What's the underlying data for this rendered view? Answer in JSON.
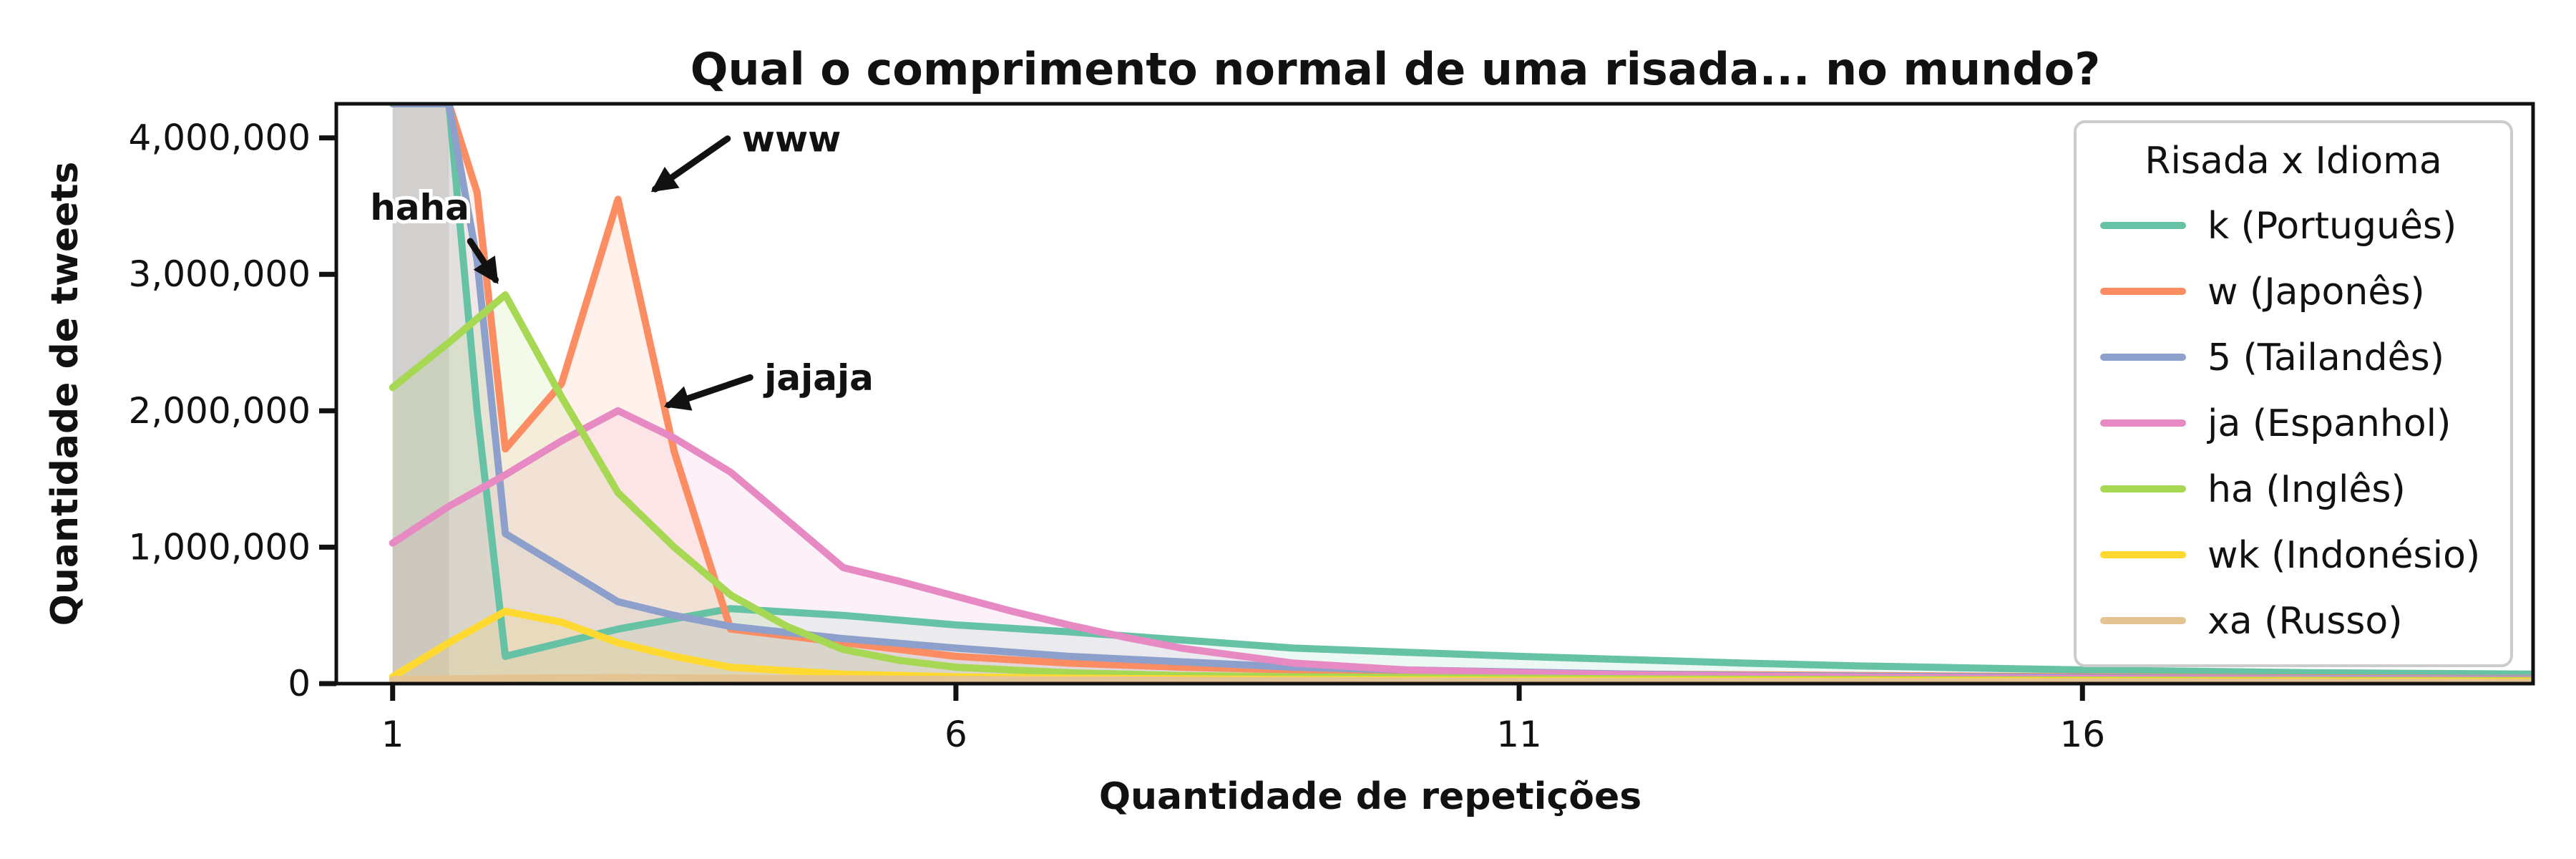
{
  "chart_data": {
    "type": "area",
    "title": "Qual o comprimento normal de uma risada... no mundo?",
    "xlabel": "Quantidade de repetições",
    "ylabel": "Quantidade de tweets",
    "xlim": [
      0.5,
      20
    ],
    "ylim": [
      0,
      4250000
    ],
    "xticks": [
      1,
      6,
      11,
      16
    ],
    "xtick_labels": [
      "1",
      "6",
      "11",
      "16"
    ],
    "yticks": [
      0,
      1000000,
      2000000,
      3000000,
      4000000
    ],
    "ytick_labels": [
      "0",
      "1,000,000",
      "2,000,000",
      "3,000,000",
      "4,000,000"
    ],
    "grid": false,
    "legend": {
      "title": "Risada x Idioma",
      "placement": "top-right"
    },
    "series": [
      {
        "name": "k (Português)",
        "color": "#66c2a5",
        "x": [
          1,
          1.5,
          1.75,
          2,
          2.5,
          3,
          4,
          5,
          6,
          7,
          8,
          9,
          10,
          11,
          12,
          13,
          14,
          15,
          16,
          17,
          18,
          19,
          20
        ],
        "y": [
          4250000,
          4250000,
          2000000,
          200000,
          300000,
          400000,
          550000,
          500000,
          430000,
          380000,
          320000,
          260000,
          230000,
          200000,
          175000,
          150000,
          130000,
          115000,
          100000,
          90000,
          80000,
          75000,
          70000
        ]
      },
      {
        "name": "w (Japonês)",
        "color": "#fc8d62",
        "x": [
          1,
          1.5,
          1.75,
          2,
          2.5,
          3,
          3.5,
          4,
          4.5,
          5,
          6,
          7,
          8,
          9,
          10,
          11,
          12,
          13,
          14,
          15,
          16,
          17,
          18,
          19,
          20
        ],
        "y": [
          4250000,
          4250000,
          3600000,
          1720000,
          2200000,
          3550000,
          1700000,
          400000,
          350000,
          300000,
          200000,
          150000,
          120000,
          100000,
          90000,
          80000,
          70000,
          65000,
          60000,
          55000,
          50000,
          45000,
          42000,
          40000,
          38000
        ]
      },
      {
        "name": "5 (Tailandês)",
        "color": "#8da0cb",
        "x": [
          1,
          1.5,
          1.75,
          2,
          2.5,
          3,
          3.5,
          4,
          5,
          6,
          7,
          8,
          9,
          10,
          11,
          12,
          13,
          14,
          15,
          16,
          17,
          18,
          19,
          20
        ],
        "y": [
          4250000,
          4250000,
          3100000,
          1100000,
          850000,
          600000,
          500000,
          420000,
          330000,
          260000,
          200000,
          160000,
          120000,
          100000,
          85000,
          70000,
          60000,
          55000,
          50000,
          45000,
          40000,
          38000,
          36000,
          35000
        ]
      },
      {
        "name": "ja (Espanhol)",
        "color": "#e78ac3",
        "x": [
          1,
          1.5,
          2,
          2.5,
          3,
          3.5,
          4,
          4.5,
          5,
          5.5,
          6,
          6.5,
          7,
          7.5,
          8,
          9,
          10,
          11,
          12,
          13,
          14,
          15,
          16,
          17,
          18,
          19,
          20
        ],
        "y": [
          1030000,
          1300000,
          1530000,
          1780000,
          2000000,
          1800000,
          1550000,
          1200000,
          850000,
          750000,
          640000,
          530000,
          430000,
          340000,
          260000,
          150000,
          100000,
          80000,
          65000,
          55000,
          48000,
          42000,
          38000,
          35000,
          32000,
          30000,
          28000
        ]
      },
      {
        "name": "ha (Inglês)",
        "color": "#a6d854",
        "x": [
          1,
          1.5,
          2,
          2.5,
          3,
          3.5,
          4,
          4.5,
          5,
          5.5,
          6,
          7,
          8,
          9,
          10,
          11,
          12,
          13,
          14,
          15,
          16,
          17,
          18,
          19,
          20
        ],
        "y": [
          2170000,
          2500000,
          2850000,
          2100000,
          1400000,
          1000000,
          650000,
          420000,
          250000,
          170000,
          120000,
          80000,
          60000,
          50000,
          45000,
          40000,
          35000,
          32000,
          30000,
          28000,
          26000,
          25000,
          24000,
          23000,
          22000
        ]
      },
      {
        "name": "wk (Indonésio)",
        "color": "#ffd92f",
        "x": [
          1,
          1.5,
          2,
          2.5,
          3,
          3.5,
          4,
          5,
          6,
          7,
          8,
          9,
          10,
          11,
          12,
          13,
          14,
          15,
          16,
          17,
          18,
          19,
          20
        ],
        "y": [
          50000,
          300000,
          530000,
          450000,
          300000,
          200000,
          120000,
          70000,
          50000,
          40000,
          35000,
          30000,
          28000,
          25000,
          24000,
          23000,
          22000,
          21000,
          20000,
          19000,
          18000,
          17000,
          16000
        ]
      },
      {
        "name": "xa (Russo)",
        "color": "#e5c494",
        "x": [
          1,
          2,
          3,
          4,
          5,
          6,
          7,
          8,
          9,
          10,
          11,
          12,
          13,
          14,
          15,
          16,
          17,
          18,
          19,
          20
        ],
        "y": [
          30000,
          40000,
          45000,
          40000,
          35000,
          30000,
          28000,
          25000,
          22000,
          20000,
          18000,
          16000,
          15000,
          14000,
          13000,
          12000,
          11000,
          10000,
          9000,
          8000
        ]
      }
    ],
    "annotations": [
      {
        "text": "haha",
        "point": [
          2,
          2850000
        ],
        "text_at": [
          0.8,
          3400000
        ]
      },
      {
        "text": "www",
        "point": [
          3.2,
          3550000
        ],
        "text_at": [
          4.1,
          3900000
        ]
      },
      {
        "text": "jajaja",
        "point": [
          3.3,
          2000000
        ],
        "text_at": [
          4.3,
          2150000
        ]
      }
    ]
  }
}
